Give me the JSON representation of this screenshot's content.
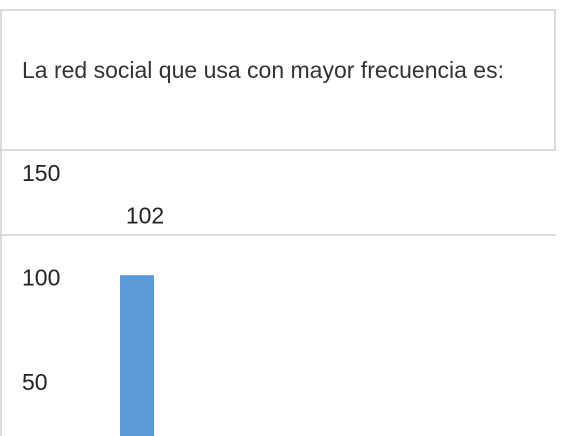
{
  "chart_data": {
    "type": "bar",
    "title": "La red social que usa con mayor frecuencia es:",
    "categories": [
      null
    ],
    "values": [
      102
    ],
    "color": "#5b9bd5",
    "ylim": [
      25,
      150
    ],
    "yticks": [
      150,
      100,
      50
    ]
  }
}
